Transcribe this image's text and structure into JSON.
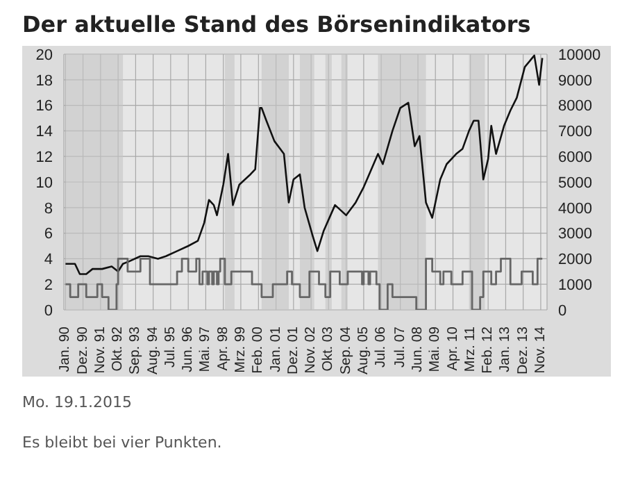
{
  "chart_data": {
    "type": "line",
    "title": "Der aktuelle Stand des Börsenindikators",
    "annotations": [
      "Mo. 19.1.2015",
      "Es bleibt bei vier Punkten."
    ],
    "xlim": [
      "1989-12",
      "2015-03"
    ],
    "xticks": [
      {
        "value": "1990-01",
        "label": "Jan. 90"
      },
      {
        "value": "1990-12",
        "label": "Dez. 90"
      },
      {
        "value": "1991-11",
        "label": "Nov. 91"
      },
      {
        "value": "1992-10",
        "label": "Okt. 92"
      },
      {
        "value": "1993-09",
        "label": "Sep. 93"
      },
      {
        "value": "1994-08",
        "label": "Aug. 94"
      },
      {
        "value": "1995-07",
        "label": "Jul. 95"
      },
      {
        "value": "1996-06",
        "label": "Jun. 96"
      },
      {
        "value": "1997-05",
        "label": "Mai. 97"
      },
      {
        "value": "1998-04",
        "label": "Apr. 98"
      },
      {
        "value": "1999-03",
        "label": "Mrz. 99"
      },
      {
        "value": "2000-02",
        "label": "Feb. 00"
      },
      {
        "value": "2001-01",
        "label": "Jan. 01"
      },
      {
        "value": "2001-12",
        "label": "Dez. 01"
      },
      {
        "value": "2002-11",
        "label": "Nov. 02"
      },
      {
        "value": "2003-10",
        "label": "Okt. 03"
      },
      {
        "value": "2004-09",
        "label": "Sep. 04"
      },
      {
        "value": "2005-08",
        "label": "Aug. 05"
      },
      {
        "value": "2006-07",
        "label": "Jul. 06"
      },
      {
        "value": "2007-07",
        "label": "Jul. 07"
      },
      {
        "value": "2008-06",
        "label": "Jun. 08"
      },
      {
        "value": "2009-05",
        "label": "Mai. 09"
      },
      {
        "value": "2010-04",
        "label": "Apr. 10"
      },
      {
        "value": "2011-03",
        "label": "Mrz. 11"
      },
      {
        "value": "2012-02",
        "label": "Feb. 12"
      },
      {
        "value": "2013-01",
        "label": "Jan. 13"
      },
      {
        "value": "2013-12",
        "label": "Dez. 13"
      },
      {
        "value": "2014-11",
        "label": "Nov. 14"
      }
    ],
    "ylim": [
      0,
      20
    ],
    "yticks": [
      0,
      2,
      4,
      6,
      8,
      10,
      12,
      14,
      16,
      18,
      20
    ],
    "y2lim": [
      0,
      10000
    ],
    "y2ticks": [
      0,
      1000,
      2000,
      3000,
      4000,
      5000,
      6000,
      7000,
      8000,
      9000,
      10000
    ],
    "grid": true,
    "marker": "none",
    "line_style": "solid",
    "series": [
      {
        "type": "line",
        "axis": "y2",
        "color": "#111111",
        "x": [
          "1990-01",
          "1990-07",
          "1990-10",
          "1991-02",
          "1991-06",
          "1991-12",
          "1992-06",
          "1992-10",
          "1993-01",
          "1993-05",
          "1993-12",
          "1994-05",
          "1994-11",
          "1995-04",
          "1995-11",
          "1996-06",
          "1996-12",
          "1997-04",
          "1997-07",
          "1997-10",
          "1997-12",
          "1998-04",
          "1998-07",
          "1998-10",
          "1999-02",
          "1999-09",
          "1999-12",
          "2000-03",
          "2000-04",
          "2000-07",
          "2000-12",
          "2001-06",
          "2001-09",
          "2001-12",
          "2002-04",
          "2002-07",
          "2002-12",
          "2003-03",
          "2003-07",
          "2004-02",
          "2004-09",
          "2005-03",
          "2005-08",
          "2006-05",
          "2006-08",
          "2007-02",
          "2007-07",
          "2007-12",
          "2008-04",
          "2008-07",
          "2008-11",
          "2009-03",
          "2009-08",
          "2009-12",
          "2010-06",
          "2010-10",
          "2011-02",
          "2011-05",
          "2011-08",
          "2011-11",
          "2012-02",
          "2012-04",
          "2012-07",
          "2012-12",
          "2013-04",
          "2013-08",
          "2014-01",
          "2014-07",
          "2014-10",
          "2014-12"
        ],
        "values": [
          1800,
          1800,
          1400,
          1400,
          1600,
          1600,
          1700,
          1500,
          1800,
          1900,
          2100,
          2100,
          2000,
          2100,
          2300,
          2500,
          2700,
          3400,
          4300,
          4100,
          3700,
          4900,
          6100,
          4100,
          4900,
          5300,
          5500,
          7900,
          7900,
          7400,
          6600,
          6100,
          4200,
          5100,
          5300,
          4000,
          2900,
          2300,
          3100,
          4100,
          3700,
          4200,
          4800,
          6100,
          5700,
          7000,
          7900,
          8100,
          6400,
          6800,
          4200,
          3600,
          5100,
          5700,
          6100,
          6300,
          7000,
          7400,
          7400,
          5100,
          5900,
          7200,
          6100,
          7200,
          7800,
          8300,
          9500,
          9950,
          8800,
          9850
        ]
      },
      {
        "type": "step",
        "axis": "y",
        "color": "#666666",
        "x": [
          "1990-01",
          "1990-04",
          "1990-09",
          "1991-02",
          "1991-09",
          "1991-12",
          "1992-04",
          "1992-09",
          "1992-10",
          "1993-04",
          "1993-12",
          "1994-06",
          "1995-11",
          "1996-02",
          "1996-06",
          "1996-11",
          "1997-01",
          "1997-03",
          "1997-06",
          "1997-07",
          "1997-09",
          "1997-10",
          "1997-12",
          "1998-01",
          "1998-02",
          "1998-05",
          "1998-09",
          "1999-10",
          "2000-04",
          "2000-11",
          "2001-08",
          "2001-11",
          "2002-04",
          "2002-10",
          "2003-04",
          "2003-08",
          "2003-11",
          "2004-05",
          "2004-10",
          "2005-07",
          "2005-08",
          "2005-11",
          "2005-12",
          "2006-04",
          "2006-06",
          "2006-11",
          "2007-02",
          "2008-05",
          "2008-11",
          "2009-03",
          "2009-08",
          "2009-10",
          "2010-03",
          "2010-10",
          "2011-04",
          "2011-09",
          "2011-11",
          "2012-04",
          "2012-07",
          "2012-10",
          "2013-04",
          "2013-11",
          "2014-06",
          "2014-09",
          "2014-12"
        ],
        "values": [
          2,
          1,
          2,
          1,
          2,
          1,
          0,
          2,
          4,
          3,
          4,
          2,
          3,
          4,
          3,
          4,
          2,
          3,
          2,
          3,
          2,
          3,
          2,
          3,
          4,
          2,
          3,
          2,
          1,
          2,
          3,
          2,
          1,
          3,
          2,
          1,
          3,
          2,
          3,
          2,
          3,
          2,
          3,
          2,
          0,
          2,
          1,
          0,
          4,
          3,
          2,
          3,
          2,
          3,
          0,
          1,
          3,
          2,
          3,
          4,
          2,
          3,
          2,
          4,
          4
        ]
      }
    ],
    "bands": [
      {
        "axis": "x",
        "from": "1990-01",
        "to": "1993-01",
        "color": "#c4c4c4"
      },
      {
        "axis": "x",
        "from": "1998-05",
        "to": "1998-11",
        "color": "#c4c4c4"
      },
      {
        "axis": "x",
        "from": "2000-04",
        "to": "2001-09",
        "color": "#c4c4c4"
      },
      {
        "axis": "x",
        "from": "2002-04",
        "to": "2003-01",
        "color": "#c4c4c4"
      },
      {
        "axis": "x",
        "from": "2003-08",
        "to": "2003-12",
        "color": "#c4c4c4"
      },
      {
        "axis": "x",
        "from": "2004-06",
        "to": "2004-10",
        "color": "#c4c4c4"
      },
      {
        "axis": "x",
        "from": "2006-05",
        "to": "2008-11",
        "color": "#c4c4c4"
      },
      {
        "axis": "x",
        "from": "2011-02",
        "to": "2011-12",
        "color": "#c4c4c4"
      }
    ]
  }
}
